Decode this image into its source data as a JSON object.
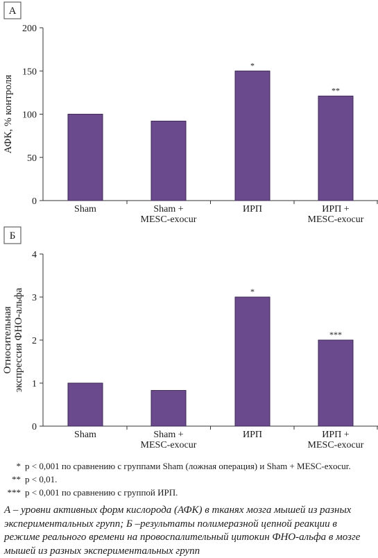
{
  "chart_data": [
    {
      "type": "bar",
      "panel_label": "А",
      "ylabel": "АФК, % контроля",
      "ylabel_lines": [
        "АФК, % контроля"
      ],
      "xlabel": "",
      "categories": [
        [
          "Sham"
        ],
        [
          "Sham +",
          "MESC-exocur"
        ],
        [
          "ИРП"
        ],
        [
          "ИРП +",
          "MESC-exocur"
        ]
      ],
      "values": [
        100,
        92,
        150,
        121
      ],
      "annotations": [
        "",
        "",
        "*",
        "**"
      ],
      "ylim": [
        0,
        200
      ],
      "yticks": [
        0,
        50,
        100,
        150,
        200
      ],
      "bar_color": "#6a4a8c",
      "grid": false
    },
    {
      "type": "bar",
      "panel_label": "Б",
      "ylabel": "Относительная экспрессия ФНО-альфа",
      "ylabel_lines": [
        "Относительная",
        "экспрессия ФНО-альфа"
      ],
      "xlabel": "",
      "categories": [
        [
          "Sham"
        ],
        [
          "Sham +",
          "MESC-exocur"
        ],
        [
          "ИРП"
        ],
        [
          "ИРП +",
          "MESC-exocur"
        ]
      ],
      "values": [
        1.0,
        0.83,
        3.0,
        2.0
      ],
      "annotations": [
        "",
        "",
        "*",
        "***"
      ],
      "ylim": [
        0,
        4
      ],
      "yticks": [
        0,
        1,
        2,
        3,
        4
      ],
      "bar_color": "#6a4a8c",
      "grid": false
    }
  ],
  "footnotes": [
    {
      "mark": "*",
      "text": "p < 0,001 по сравнению с группами Sham (ложная операция) и Sham + MESC-exocur."
    },
    {
      "mark": "**",
      "text": "p < 0,01."
    },
    {
      "mark": "***",
      "text": "p < 0,001 по сравнению с группой ИРП."
    }
  ],
  "caption": "А – уровни активных форм кислорода (АФК) в тканях мозга мышей из разных экспериментальных групп; Б –результаты полимеразной цепной реакции в режиме реального времени на провоспалительный цитокин ФНО-альфа в мозге мышей из разных экспериментальных групп"
}
